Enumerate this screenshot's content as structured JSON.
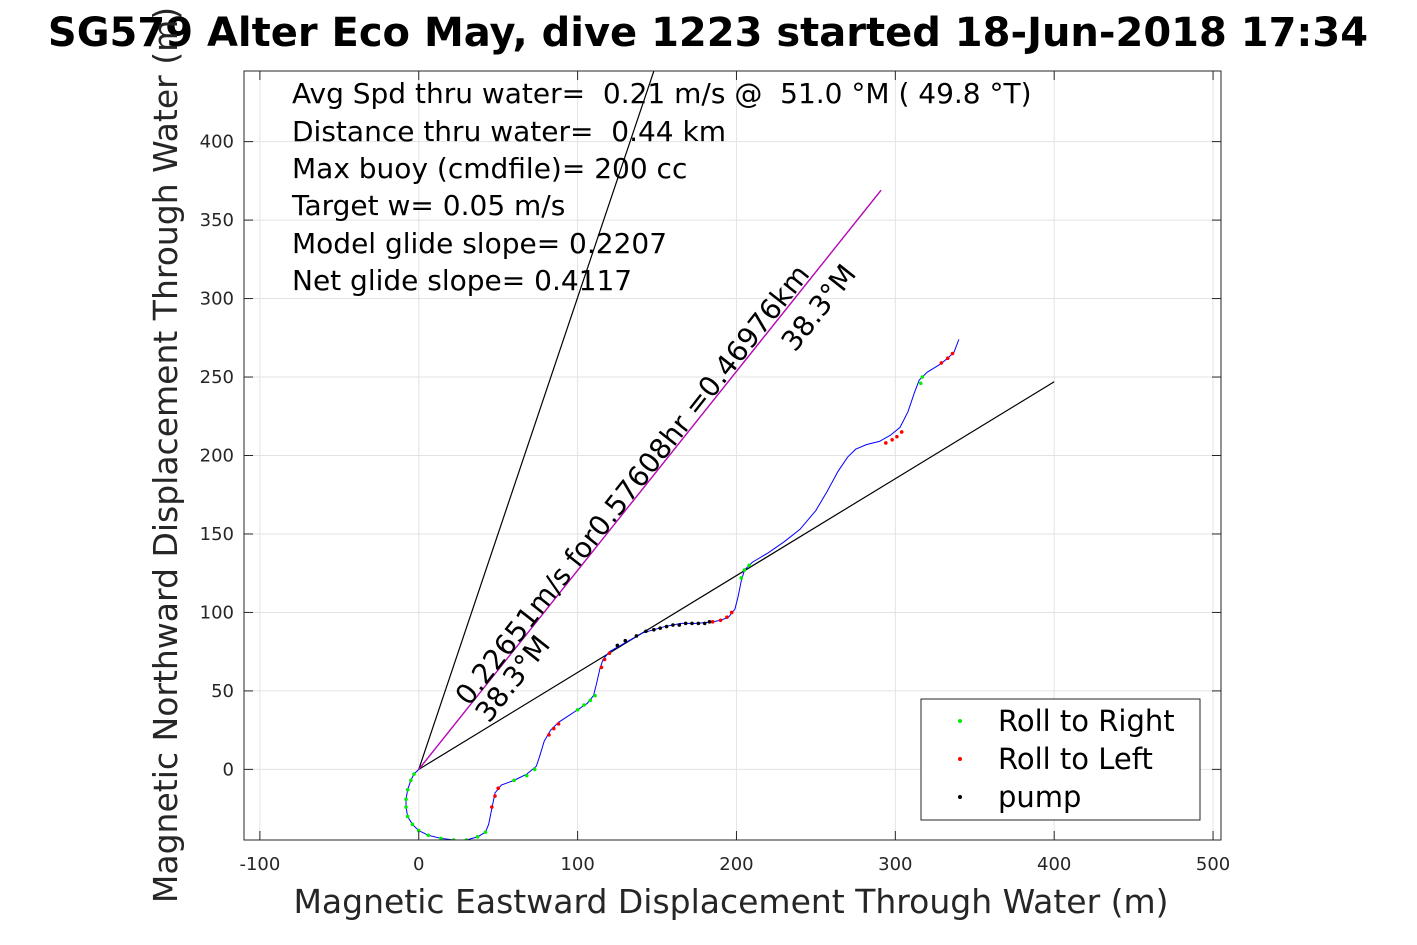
{
  "chart_data": {
    "type": "scatter",
    "title": "SG579 Alter Eco May, dive 1223 started 18-Jun-2018 17:34",
    "xlabel": "Magnetic Eastward Displacement Through Water (m)",
    "ylabel": "Magnetic Northward Displacement Through Water (m)",
    "xlim": [
      -110,
      505
    ],
    "ylim": [
      -45,
      445
    ],
    "xticks": [
      -100,
      0,
      100,
      200,
      300,
      400,
      500
    ],
    "yticks": [
      0,
      50,
      100,
      150,
      200,
      250,
      300,
      350,
      400
    ],
    "grid": true,
    "legend_position": "bottom-right",
    "annotations": [
      "Avg Spd thru water=  0.21 m/s @  51.0 °M ( 49.8 °T)",
      "Distance thru water=  0.44 km",
      "Max buoy (cmdfile)= 200 cc",
      "Target w= 0.05 m/s",
      "Model glide slope= 0.2207",
      "Net glide slope= 0.4117"
    ],
    "line_labels": {
      "speed_label": "0.22651m/s for0.57608hr =0.46976km",
      "heading_label_lower": "38.3°M",
      "heading_label_upper": "38.3°M"
    },
    "reference_lines": [
      {
        "color": "#000000",
        "points": [
          [
            0,
            0
          ],
          [
            148,
            445
          ]
        ]
      },
      {
        "color": "#000000",
        "points": [
          [
            0,
            0
          ],
          [
            400,
            247
          ]
        ]
      },
      {
        "color": "#000000",
        "points": [
          [
            0,
            0
          ],
          [
            291,
            369
          ]
        ]
      },
      {
        "color": "#cc00cc",
        "points": [
          [
            0,
            0
          ],
          [
            291,
            369
          ]
        ]
      }
    ],
    "track": {
      "color": "#0000ff",
      "points": [
        [
          0,
          0
        ],
        [
          -3,
          -3
        ],
        [
          -5,
          -7
        ],
        [
          -7,
          -13
        ],
        [
          -8,
          -19
        ],
        [
          -8,
          -24
        ],
        [
          -7,
          -30
        ],
        [
          -4,
          -35
        ],
        [
          0,
          -39
        ],
        [
          6,
          -42
        ],
        [
          14,
          -44
        ],
        [
          22,
          -45
        ],
        [
          30,
          -45
        ],
        [
          37,
          -43
        ],
        [
          42,
          -40
        ],
        [
          44,
          -35
        ],
        [
          46,
          -25
        ],
        [
          48,
          -15
        ],
        [
          52,
          -10
        ],
        [
          60,
          -7
        ],
        [
          68,
          -3
        ],
        [
          74,
          2
        ],
        [
          76,
          8
        ],
        [
          79,
          18
        ],
        [
          83,
          25
        ],
        [
          88,
          30
        ],
        [
          94,
          34
        ],
        [
          100,
          38
        ],
        [
          106,
          42
        ],
        [
          110,
          47
        ],
        [
          112,
          55
        ],
        [
          114,
          64
        ],
        [
          116,
          70
        ],
        [
          120,
          75
        ],
        [
          127,
          79
        ],
        [
          134,
          83
        ],
        [
          141,
          87
        ],
        [
          148,
          89
        ],
        [
          155,
          91
        ],
        [
          165,
          93
        ],
        [
          175,
          93
        ],
        [
          185,
          94
        ],
        [
          190,
          95
        ],
        [
          195,
          97
        ],
        [
          199,
          102
        ],
        [
          201,
          110
        ],
        [
          203,
          120
        ],
        [
          205,
          127
        ],
        [
          210,
          132
        ],
        [
          220,
          138
        ],
        [
          230,
          145
        ],
        [
          240,
          153
        ],
        [
          250,
          165
        ],
        [
          257,
          177
        ],
        [
          264,
          190
        ],
        [
          270,
          199
        ],
        [
          275,
          204
        ],
        [
          282,
          207
        ],
        [
          290,
          209
        ],
        [
          297,
          213
        ],
        [
          303,
          218
        ],
        [
          308,
          228
        ],
        [
          312,
          240
        ],
        [
          315,
          248
        ],
        [
          320,
          253
        ],
        [
          328,
          258
        ],
        [
          333,
          262
        ],
        [
          337,
          266
        ],
        [
          340,
          274
        ]
      ]
    },
    "series": [
      {
        "name": "Roll to Right",
        "color": "#00ee00",
        "points": [
          [
            -3,
            -3
          ],
          [
            -5,
            -7
          ],
          [
            -7,
            -13
          ],
          [
            -8,
            -19
          ],
          [
            -8,
            -24
          ],
          [
            -7,
            -30
          ],
          [
            -4,
            -35
          ],
          [
            0,
            -39
          ],
          [
            6,
            -42
          ],
          [
            14,
            -44
          ],
          [
            22,
            -45
          ],
          [
            30,
            -45
          ],
          [
            37,
            -43
          ],
          [
            42,
            -40
          ],
          [
            60,
            -7
          ],
          [
            68,
            -4
          ],
          [
            73,
            0
          ],
          [
            100,
            38
          ],
          [
            104,
            41
          ],
          [
            108,
            44
          ],
          [
            111,
            47
          ],
          [
            203,
            122
          ],
          [
            205,
            127
          ],
          [
            208,
            130
          ],
          [
            316,
            246
          ],
          [
            317,
            250
          ]
        ]
      },
      {
        "name": "Roll to Left",
        "color": "#ff0000",
        "points": [
          [
            46,
            -24
          ],
          [
            48,
            -17
          ],
          [
            50,
            -12
          ],
          [
            82,
            22
          ],
          [
            85,
            26
          ],
          [
            88,
            29
          ],
          [
            115,
            65
          ],
          [
            117,
            70
          ],
          [
            120,
            74
          ],
          [
            185,
            94
          ],
          [
            190,
            95
          ],
          [
            194,
            97
          ],
          [
            197,
            100
          ],
          [
            294,
            208
          ],
          [
            298,
            210
          ],
          [
            301,
            212
          ],
          [
            304,
            215
          ],
          [
            329,
            259
          ],
          [
            333,
            262
          ],
          [
            336,
            265
          ]
        ]
      },
      {
        "name": "pump",
        "color": "#000000",
        "points": [
          [
            125,
            79
          ],
          [
            130,
            82
          ],
          [
            137,
            85
          ],
          [
            143,
            88
          ],
          [
            148,
            89
          ],
          [
            152,
            90
          ],
          [
            156,
            91
          ],
          [
            160,
            92
          ],
          [
            164,
            92
          ],
          [
            168,
            93
          ],
          [
            172,
            93
          ],
          [
            176,
            93
          ],
          [
            180,
            93
          ],
          [
            183,
            94
          ]
        ]
      }
    ]
  }
}
